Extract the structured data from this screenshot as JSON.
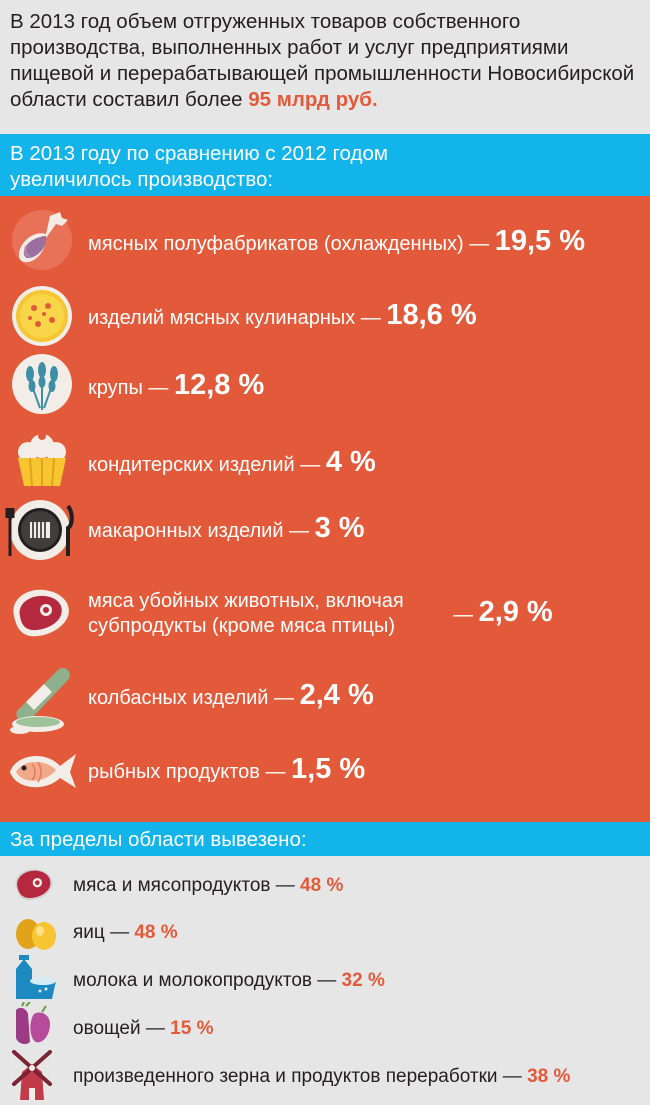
{
  "intro": {
    "text": "В 2013 год объем отгруженных товаров собственного производства, выполненных работ и услуг предприятиями пищевой и перерабатывающей промышленности Новосибирской области составил более ",
    "highlight": "95 млрд руб."
  },
  "growth_header": {
    "line1": "В 2013 году по сравнению с 2012 годом",
    "line2": "увеличилось производство:"
  },
  "growth_items": [
    {
      "icon": "chicken-leg-icon",
      "label": "мясных полуфабрикатов (охлажденных) — ",
      "value": "19,5 %"
    },
    {
      "icon": "pizza-icon",
      "label": "изделий мясных кулинарных — ",
      "value": "18,6 %"
    },
    {
      "icon": "wheat-icon",
      "label": "крупы — ",
      "value": "12,8 %"
    },
    {
      "icon": "cupcake-icon",
      "label": "кондитерских изделий — ",
      "value": "4 %"
    },
    {
      "icon": "plate-cutlery-icon",
      "label": "макаронных изделий — ",
      "value": "3 %"
    },
    {
      "icon": "meat-steak-icon",
      "label_line1": "мяса убойных животных, включая",
      "label_line2": "субпродукты (кроме мяса птицы)",
      "dash": "— ",
      "value": "2,9 %"
    },
    {
      "icon": "sausage-icon",
      "label": "колбасных изделий — ",
      "value": "2,4 %"
    },
    {
      "icon": "fish-icon",
      "label": "рыбных продуктов — ",
      "value": "1,5 %"
    }
  ],
  "export_header": "За пределы области вывезено:",
  "export_items": [
    {
      "icon": "meat-steak-icon",
      "label": "мяса и мясопродуктов — ",
      "value": "48 %"
    },
    {
      "icon": "eggs-icon",
      "label": "яиц — ",
      "value": "48 %"
    },
    {
      "icon": "milk-icon",
      "label": "молока и молокопродуктов — ",
      "value": "32 %"
    },
    {
      "icon": "vegetables-icon",
      "label": "овощей — ",
      "value": "15 %"
    },
    {
      "icon": "windmill-icon",
      "label": "произведенного зерна и продуктов переработки — ",
      "value": "38 %"
    }
  ],
  "colors": {
    "accent_red": "#e35a3a",
    "band_blue": "#12b4ea",
    "background": "#e6e6e6",
    "text_dark": "#231f20"
  }
}
